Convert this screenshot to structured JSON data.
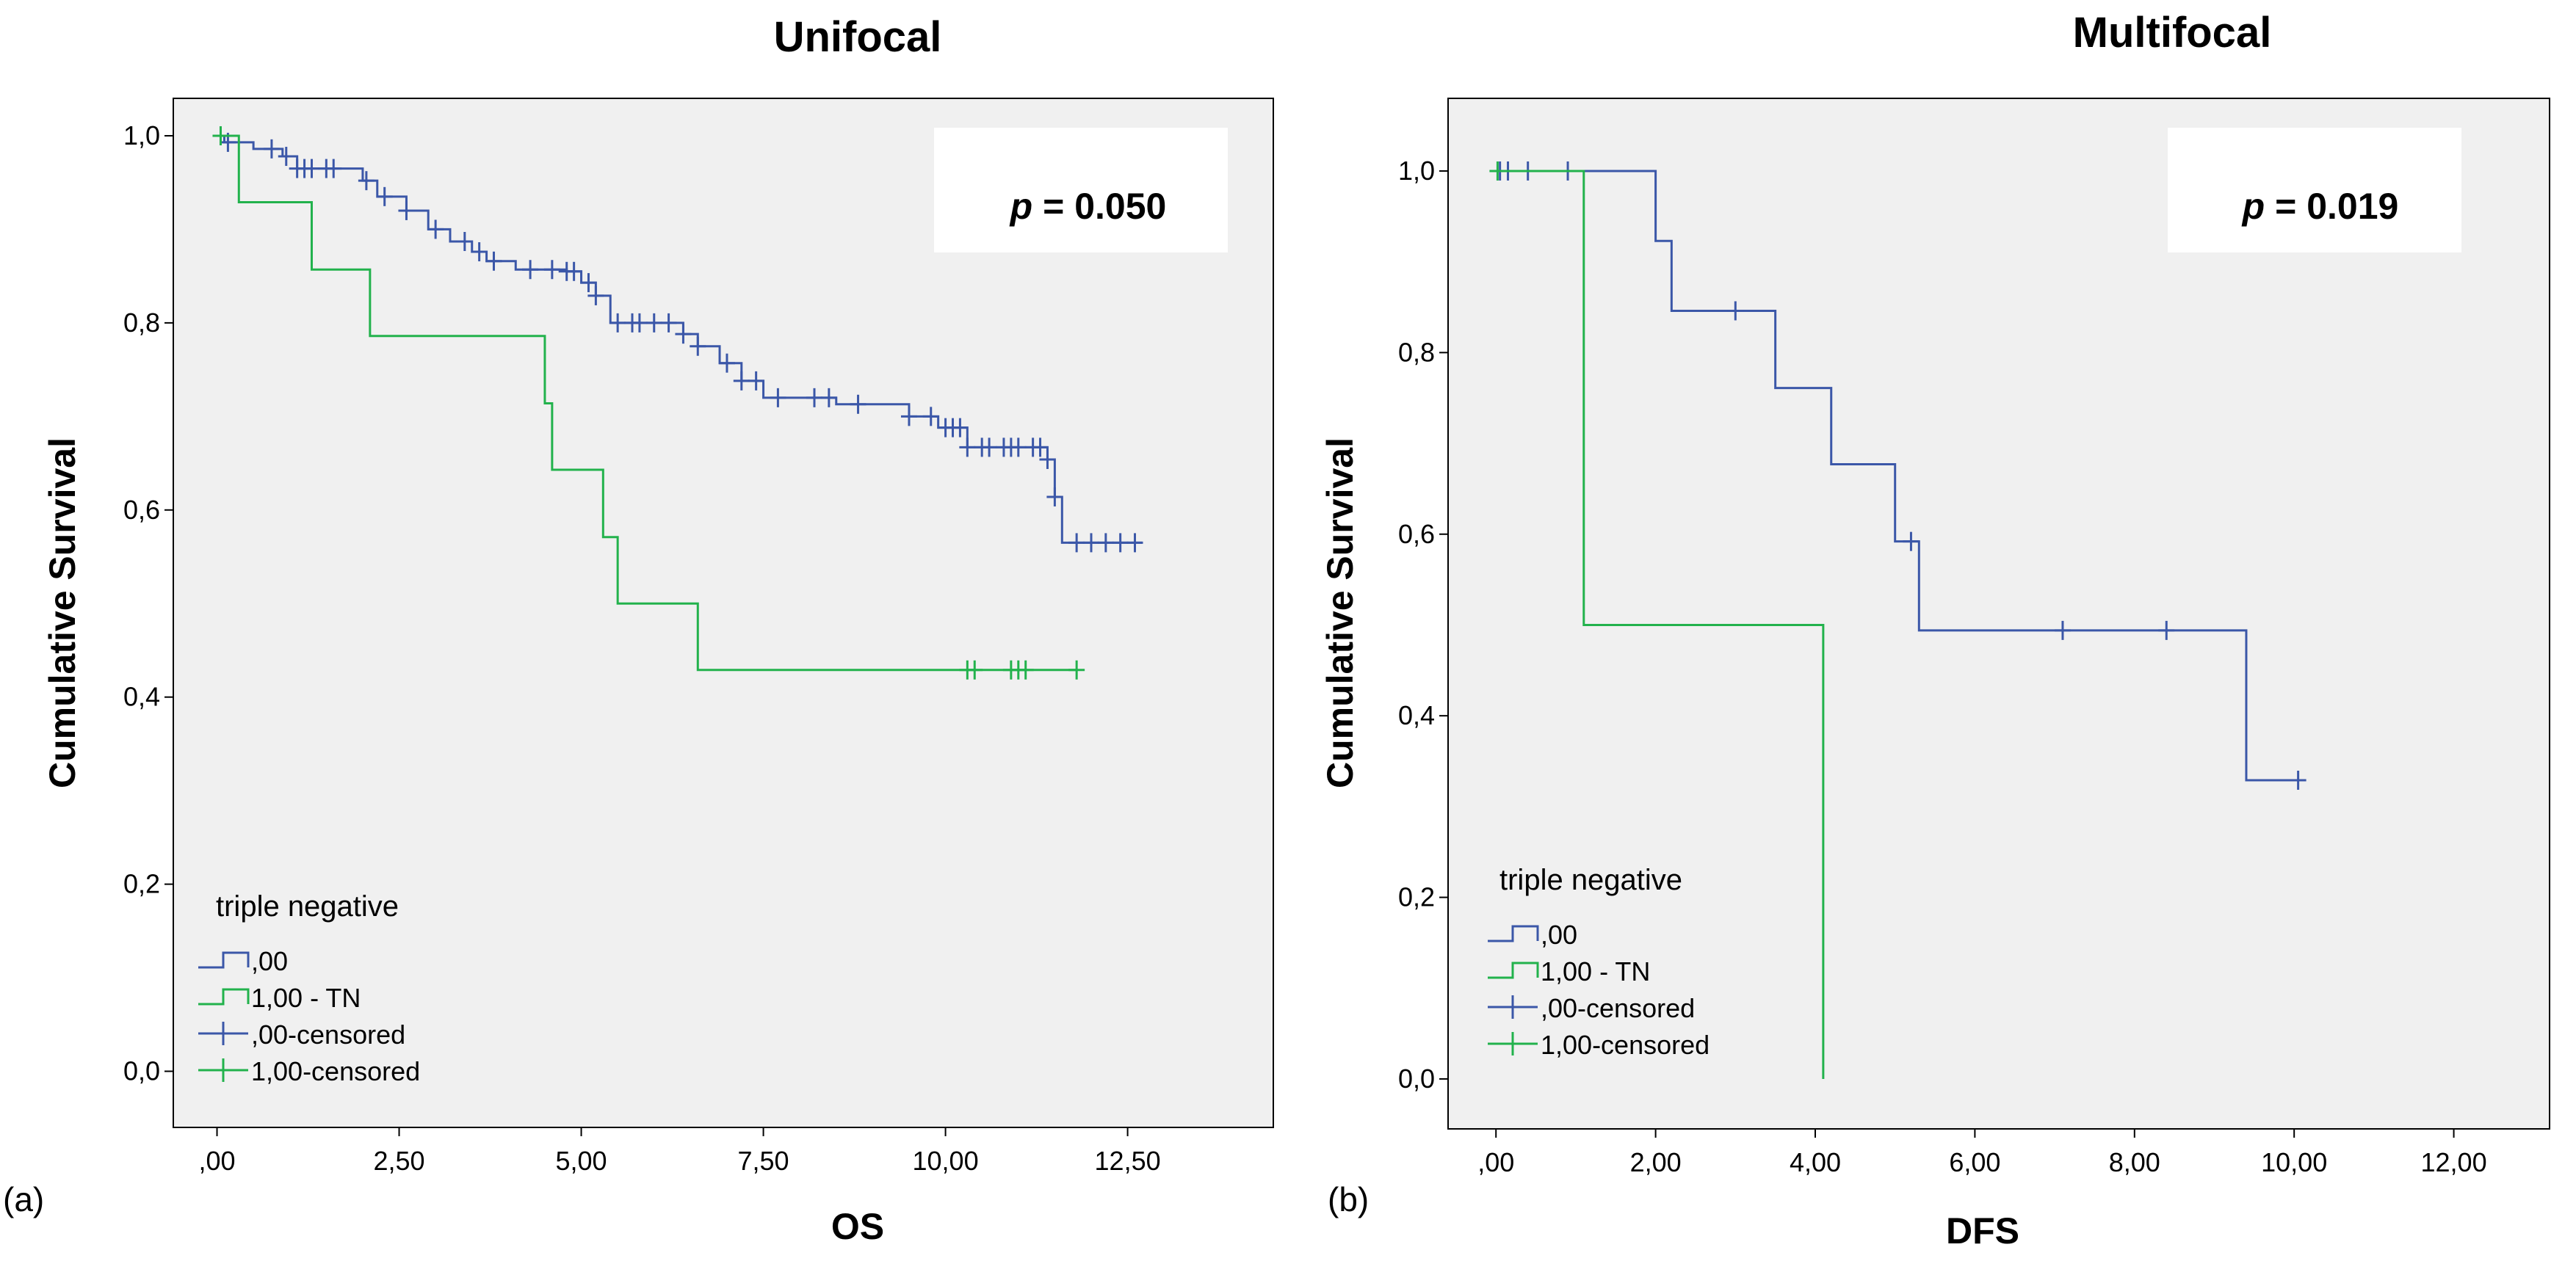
{
  "chart_data": [
    {
      "type": "line",
      "subtype": "kaplan-meier",
      "panel_label": "(a)",
      "title": "Unifocal",
      "xlabel": "OS",
      "ylabel": "Cumulative Survival",
      "xlim": [
        -0.6,
        14.5
      ],
      "ylim": [
        -0.06,
        1.04
      ],
      "xticks": [
        0,
        2.5,
        5,
        7.5,
        10,
        12.5
      ],
      "xtick_labels": [
        ",00",
        "2,50",
        "5,00",
        "7,50",
        "10,00",
        "12,50"
      ],
      "yticks": [
        0,
        0.2,
        0.4,
        0.6,
        0.8,
        1.0
      ],
      "ytick_labels": [
        "0,0",
        "0,2",
        "0,4",
        "0,6",
        "0,8",
        "1,0"
      ],
      "pvalue_prefix": "p",
      "pvalue_text": " = 0.050",
      "legend": {
        "title": "triple negative",
        "position": "bottom-left",
        "entries": [
          {
            "label": ",00",
            "kind": "step",
            "color": "#3b57a8"
          },
          {
            "label": "1,00 - TN",
            "kind": "step",
            "color": "#22b24c"
          },
          {
            "label": ",00-censored",
            "kind": "censor",
            "color": "#3b57a8"
          },
          {
            "label": "1,00-censored",
            "kind": "censor",
            "color": "#22b24c"
          }
        ]
      },
      "series": [
        {
          "name": ",00",
          "color": "#3b57a8",
          "x": [
            0,
            0.1,
            0.5,
            0.9,
            1.1,
            2.0,
            2.2,
            2.6,
            2.9,
            3.2,
            3.5,
            3.7,
            4.1,
            4.8,
            5.0,
            5.2,
            5.4,
            6.4,
            6.6,
            6.9,
            7.2,
            7.5,
            8.5,
            9.5,
            9.9,
            10.3,
            11.4,
            11.5,
            11.6,
            12.7
          ],
          "y": [
            1.0,
            0.993,
            0.986,
            0.978,
            0.965,
            0.952,
            0.935,
            0.92,
            0.9,
            0.887,
            0.876,
            0.866,
            0.857,
            0.855,
            0.843,
            0.829,
            0.8,
            0.788,
            0.775,
            0.757,
            0.738,
            0.72,
            0.713,
            0.7,
            0.688,
            0.667,
            0.654,
            0.614,
            0.565,
            0.565
          ],
          "censored_x": [
            0.05,
            0.15,
            0.75,
            0.95,
            1.1,
            1.2,
            1.3,
            1.5,
            1.6,
            2.05,
            2.3,
            2.6,
            3.0,
            3.4,
            3.6,
            3.8,
            4.3,
            4.6,
            4.8,
            4.9,
            5.1,
            5.2,
            5.5,
            5.7,
            5.8,
            6.0,
            6.2,
            6.4,
            6.6,
            7.0,
            7.2,
            7.4,
            7.7,
            8.2,
            8.4,
            8.8,
            9.5,
            9.8,
            10.0,
            10.1,
            10.2,
            10.3,
            10.5,
            10.6,
            10.8,
            10.9,
            11.0,
            11.2,
            11.3,
            11.4,
            11.5,
            11.8,
            12.0,
            12.2,
            12.4,
            12.6
          ]
        },
        {
          "name": "1,00 - TN",
          "color": "#22b24c",
          "x": [
            0,
            0.3,
            1.3,
            2.1,
            4.5,
            4.6,
            5.3,
            5.5,
            6.6,
            11.8
          ],
          "y": [
            1.0,
            0.929,
            0.857,
            0.786,
            0.714,
            0.643,
            0.571,
            0.5,
            0.429,
            0.429
          ],
          "censored_x": [
            0.05,
            10.3,
            10.4,
            10.9,
            11.0,
            11.1,
            11.8
          ]
        }
      ]
    },
    {
      "type": "line",
      "subtype": "kaplan-meier",
      "panel_label": "(b)",
      "title": "Multifocal",
      "xlabel": "DFS",
      "ylabel": "Cumulative Survival",
      "xlim": [
        -0.6,
        13.2
      ],
      "ylim": [
        -0.055,
        1.08
      ],
      "xticks": [
        0,
        2,
        4,
        6,
        8,
        10,
        12
      ],
      "xtick_labels": [
        ",00",
        "2,00",
        "4,00",
        "6,00",
        "8,00",
        "10,00",
        "12,00"
      ],
      "yticks": [
        0,
        0.2,
        0.4,
        0.6,
        0.8,
        1.0
      ],
      "ytick_labels": [
        "0,0",
        "0,2",
        "0,4",
        "0,6",
        "0,8",
        "1,0"
      ],
      "pvalue_prefix": "p",
      "pvalue_text": " = 0.019",
      "legend": {
        "title": "triple negative",
        "position": "bottom-left",
        "entries": [
          {
            "label": ",00",
            "kind": "step",
            "color": "#3b57a8"
          },
          {
            "label": "1,00 - TN",
            "kind": "step",
            "color": "#22b24c"
          },
          {
            "label": ",00-censored",
            "kind": "censor",
            "color": "#3b57a8"
          },
          {
            "label": "1,00-censored",
            "kind": "censor",
            "color": "#22b24c"
          }
        ]
      },
      "series": [
        {
          "name": ",00",
          "color": "#3b57a8",
          "x": [
            0,
            2.0,
            2.2,
            3.5,
            4.2,
            5.0,
            5.3,
            9.4,
            10.05
          ],
          "y": [
            1.0,
            0.923,
            0.846,
            0.761,
            0.677,
            0.592,
            0.494,
            0.329,
            0.329
          ],
          "censored_x": [
            0.05,
            0.15,
            0.4,
            0.9,
            3.0,
            5.2,
            7.1,
            8.4,
            10.05
          ]
        },
        {
          "name": "1,00 - TN",
          "color": "#22b24c",
          "x": [
            0,
            1.1,
            4.1
          ],
          "y": [
            1.0,
            0.5,
            0.0
          ],
          "censored_x": [
            0.02
          ]
        }
      ]
    }
  ]
}
